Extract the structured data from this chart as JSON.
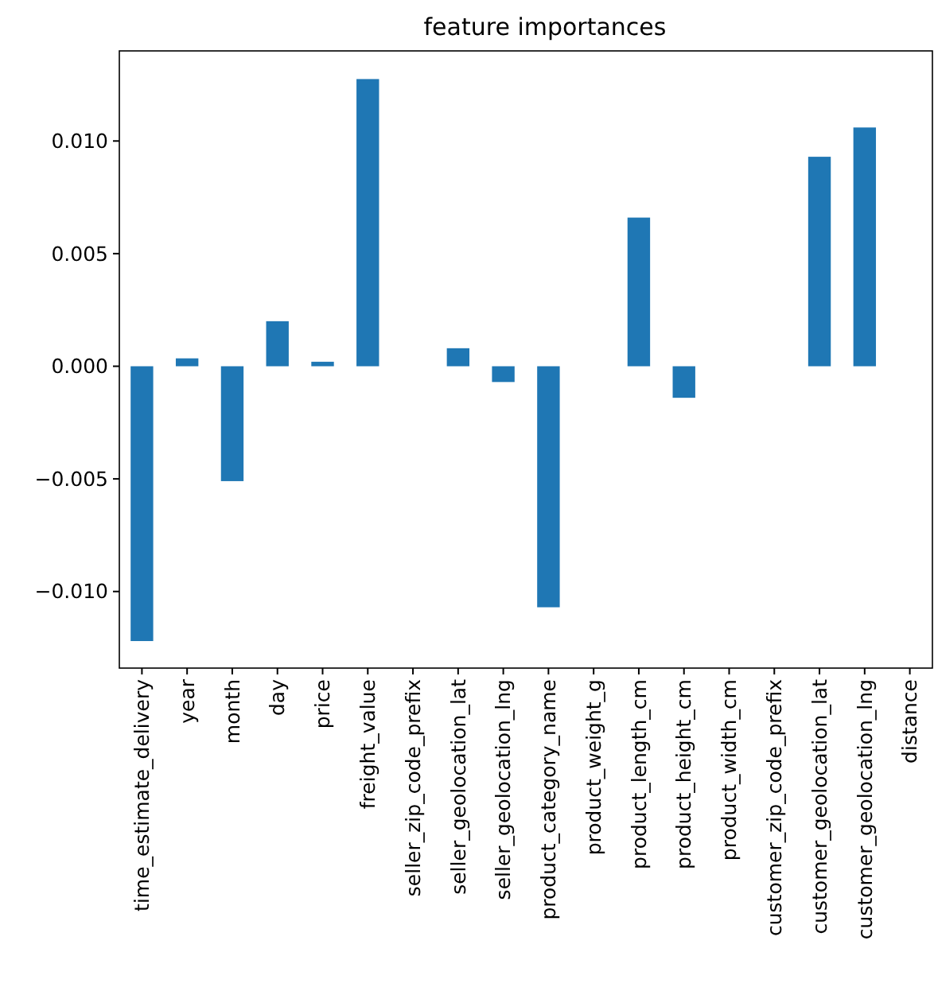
{
  "chart_data": {
    "type": "bar",
    "title": "feature importances",
    "categories": [
      "time_estimate_delivery",
      "year",
      "month",
      "day",
      "price",
      "freight_value",
      "seller_zip_code_prefix",
      "seller_geolocation_lat",
      "seller_geolocation_lng",
      "product_category_name",
      "product_weight_g",
      "product_length_cm",
      "product_height_cm",
      "product_width_cm",
      "customer_zip_code_prefix",
      "customer_geolocation_lat",
      "customer_geolocation_lng",
      "distance"
    ],
    "values": [
      -0.0122,
      0.00035,
      -0.0051,
      0.002,
      0.0002,
      0.01275,
      0,
      0.0008,
      -0.0007,
      -0.0107,
      0,
      0.0066,
      -0.0014,
      0,
      0,
      0.0093,
      0.0106,
      0
    ],
    "color": "#1f77b4",
    "ylim": [
      -0.0134,
      0.014
    ],
    "yticks": [
      {
        "value": -0.01,
        "label": "−0.010"
      },
      {
        "value": -0.005,
        "label": "−0.005"
      },
      {
        "value": 0,
        "label": "0.000"
      },
      {
        "value": 0.005,
        "label": "0.005"
      },
      {
        "value": 0.01,
        "label": "0.010"
      }
    ],
    "grid": false
  }
}
